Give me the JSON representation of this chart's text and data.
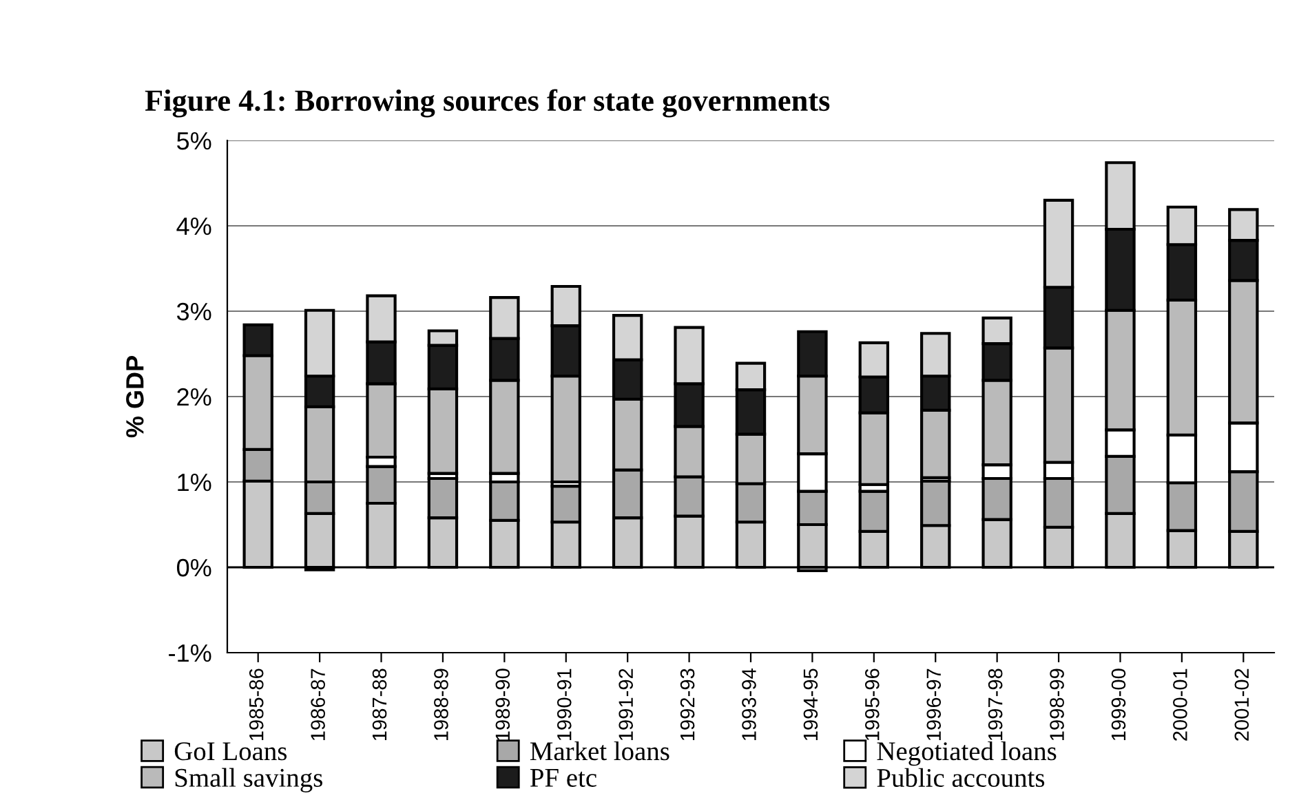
{
  "chart_data": {
    "type": "bar",
    "stacked": true,
    "title": "Figure 4.1: Borrowing sources for state governments",
    "ylabel": "% GDP",
    "categories": [
      "1985-86",
      "1986-87",
      "1987-88",
      "1988-89",
      "1989-90",
      "1990-91",
      "1991-92",
      "1992-93",
      "1993-94",
      "1994-95",
      "1995-96",
      "1996-97",
      "1997-98",
      "1998-99",
      "1999-00",
      "2000-01",
      "2001-02"
    ],
    "series": [
      {
        "name": "GoI Loans",
        "color": "#c8c8c8",
        "values": [
          1.01,
          0.63,
          0.75,
          0.58,
          0.55,
          0.53,
          0.58,
          0.6,
          0.53,
          0.5,
          0.42,
          0.49,
          0.56,
          0.47,
          0.63,
          0.43,
          0.42
        ]
      },
      {
        "name": "Market loans",
        "color": "#a8a8a8",
        "values": [
          0.37,
          0.37,
          0.43,
          0.46,
          0.45,
          0.42,
          0.56,
          0.46,
          0.45,
          0.39,
          0.47,
          0.52,
          0.48,
          0.57,
          0.67,
          0.56,
          0.7
        ]
      },
      {
        "name": "Negotiated loans",
        "color": "#ffffff",
        "values": [
          0,
          -0.03,
          0.11,
          0.06,
          0.1,
          0.05,
          0,
          0,
          0,
          0.44,
          0.08,
          0.04,
          0.16,
          0.19,
          0.31,
          0.56,
          0.57
        ]
      },
      {
        "name": "Small savings",
        "color": "#bababa",
        "values": [
          1.1,
          0.88,
          0.86,
          0.99,
          1.09,
          1.24,
          0.83,
          0.59,
          0.58,
          0.91,
          0.84,
          0.79,
          0.99,
          1.34,
          1.4,
          1.58,
          1.67
        ]
      },
      {
        "name": "PF etc",
        "color": "#1c1c1c",
        "values": [
          0.36,
          0.36,
          0.49,
          0.51,
          0.49,
          0.59,
          0.46,
          0.5,
          0.52,
          0.52,
          0.42,
          0.4,
          0.43,
          0.71,
          0.95,
          0.65,
          0.47
        ]
      },
      {
        "name": "Public accounts",
        "color": "#d4d4d4",
        "values": [
          0,
          0.77,
          0.54,
          0.17,
          0.48,
          0.46,
          0.52,
          0.66,
          0.31,
          -0.04,
          0.4,
          0.5,
          0.3,
          1.02,
          0.78,
          0.44,
          0.36
        ]
      }
    ],
    "ylim": [
      -1,
      5
    ],
    "yticks": [
      {
        "value": -1,
        "label": "-1%"
      },
      {
        "value": 0,
        "label": "0%"
      },
      {
        "value": 1,
        "label": "1%"
      },
      {
        "value": 2,
        "label": "2%"
      },
      {
        "value": 3,
        "label": "3%"
      },
      {
        "value": 4,
        "label": "4%"
      },
      {
        "value": 5,
        "label": "5%"
      }
    ],
    "grid": "y",
    "legend": "bottom"
  }
}
